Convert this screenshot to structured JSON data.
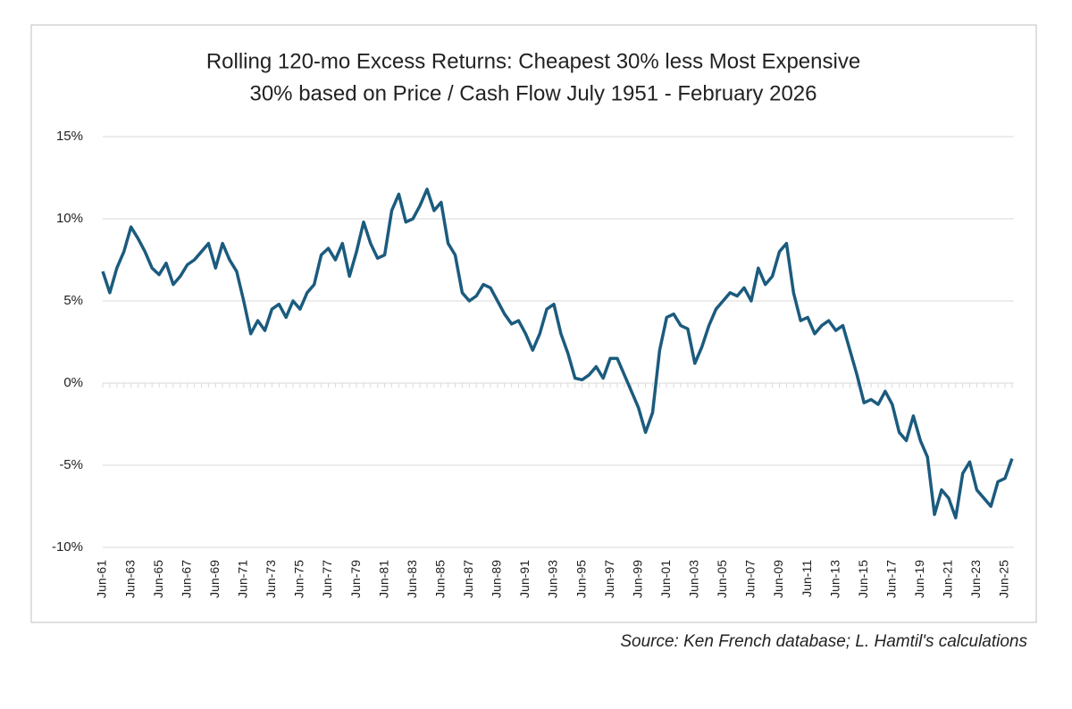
{
  "chart_data": {
    "type": "line",
    "title": [
      "Rolling 120-mo Excess Returns:  Cheapest 30% less Most Expensive",
      "30% based on Price / Cash Flow July 1951 - February 2026"
    ],
    "source": "Source:  Ken French database; L. Hamtil's calculations",
    "categories": [
      "Jun-61",
      null,
      null,
      null,
      "Jun-63",
      null,
      null,
      null,
      "Jun-65",
      null,
      null,
      null,
      "Jun-67",
      null,
      null,
      null,
      "Jun-69",
      null,
      null,
      null,
      "Jun-71",
      null,
      null,
      null,
      "Jun-73",
      null,
      null,
      null,
      "Jun-75",
      null,
      null,
      null,
      "Jun-77",
      null,
      null,
      null,
      "Jun-79",
      null,
      null,
      null,
      "Jun-81",
      null,
      null,
      null,
      "Jun-83",
      null,
      null,
      null,
      "Jun-85",
      null,
      null,
      null,
      "Jun-87",
      null,
      null,
      null,
      "Jun-89",
      null,
      null,
      null,
      "Jun-91",
      null,
      null,
      null,
      "Jun-93",
      null,
      null,
      null,
      "Jun-95",
      null,
      null,
      null,
      "Jun-97",
      null,
      null,
      null,
      "Jun-99",
      null,
      null,
      null,
      "Jun-01",
      null,
      null,
      null,
      "Jun-03",
      null,
      null,
      null,
      "Jun-05",
      null,
      null,
      null,
      "Jun-07",
      null,
      null,
      null,
      "Jun-09",
      null,
      null,
      null,
      "Jun-11",
      null,
      null,
      null,
      "Jun-13",
      null,
      null,
      null,
      "Jun-15",
      null,
      null,
      null,
      "Jun-17",
      null,
      null,
      null,
      "Jun-19",
      null,
      null,
      null,
      "Jun-21",
      null,
      null,
      null,
      "Jun-23",
      null,
      null,
      null,
      "Jun-25",
      null
    ],
    "series": [
      {
        "color": "#1b5b7e",
        "values": [
          6.8,
          5.5,
          7.0,
          8.0,
          9.5,
          8.8,
          8.0,
          7.0,
          6.6,
          7.3,
          6.0,
          6.5,
          7.2,
          7.5,
          8.0,
          8.5,
          7.0,
          8.5,
          7.5,
          6.8,
          5.0,
          3.0,
          3.8,
          3.2,
          4.5,
          4.8,
          4.0,
          5.0,
          4.5,
          5.5,
          6.0,
          7.8,
          8.2,
          7.5,
          8.5,
          6.5,
          8.0,
          9.8,
          8.5,
          7.6,
          7.8,
          10.5,
          11.5,
          9.8,
          10.0,
          10.8,
          11.8,
          10.5,
          11.0,
          8.5,
          7.8,
          5.5,
          5.0,
          5.3,
          6.0,
          5.8,
          5.0,
          4.2,
          3.6,
          3.8,
          3.0,
          2.0,
          3.0,
          4.5,
          4.8,
          3.0,
          1.8,
          0.3,
          0.2,
          0.5,
          1.0,
          0.3,
          1.5,
          1.5,
          0.5,
          -0.5,
          -1.5,
          -3.0,
          -1.8,
          2.0,
          4.0,
          4.2,
          3.5,
          3.3,
          1.2,
          2.2,
          3.5,
          4.5,
          5.0,
          5.5,
          5.3,
          5.8,
          5.0,
          7.0,
          6.0,
          6.5,
          8.0,
          8.5,
          5.5,
          3.8,
          4.0,
          3.0,
          3.5,
          3.8,
          3.2,
          3.5,
          2.0,
          0.5,
          -1.2,
          -1.0,
          -1.3,
          -0.5,
          -1.3,
          -3.0,
          -3.5,
          -2.0,
          -3.5,
          -4.5,
          -8.0,
          -6.5,
          -7.0,
          -8.2,
          -5.5,
          -4.8,
          -6.5,
          -7.0,
          -7.5,
          -6.0,
          -5.8,
          -4.6
        ]
      }
    ],
    "ylim": [
      -10,
      15
    ],
    "yticks": [
      {
        "value": -10,
        "label": "-10%"
      },
      {
        "value": -5,
        "label": "-5%"
      },
      {
        "value": 0,
        "label": "0%"
      },
      {
        "value": 5,
        "label": "5%"
      },
      {
        "value": 10,
        "label": "10%"
      },
      {
        "value": 15,
        "label": "15%"
      }
    ],
    "grid": true
  }
}
